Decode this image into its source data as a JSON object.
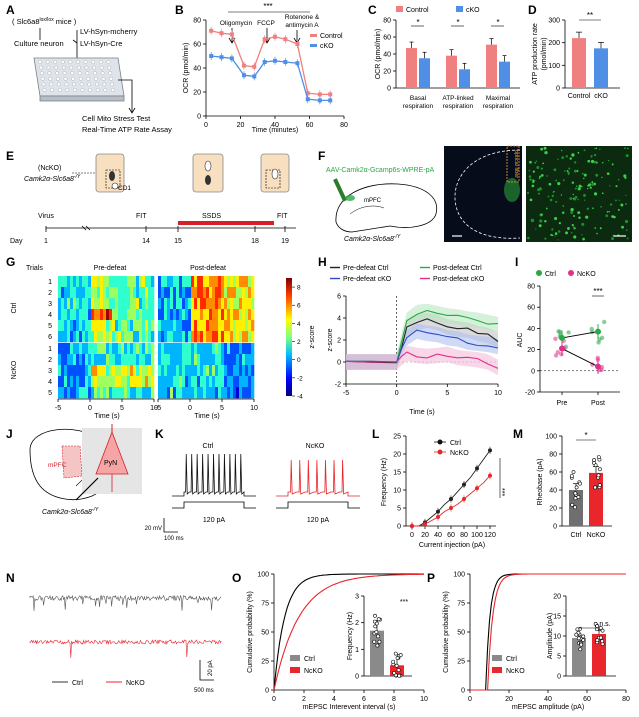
{
  "labels": [
    "A",
    "B",
    "C",
    "D",
    "E",
    "F",
    "G",
    "H",
    "I",
    "J",
    "K",
    "L",
    "M",
    "N",
    "O",
    "P"
  ],
  "colors": {
    "control": "#f08080",
    "ckO": "#4f8fe6",
    "ctrl": "#222222",
    "nckO": "#e8262b",
    "grey": "#8a8a8a",
    "green": "#29a845",
    "magenta": "#e0308a",
    "blue": "#2b4fc2"
  },
  "A": {
    "mouse": "( Slc6a8",
    "mouse_sup": "lox/lox",
    "mouse_end": " mice )",
    "culture": "Culture neuron",
    "virus1": "LV-hSyn-mcherry",
    "virus2": "LV-hSyn-Cre",
    "test1": "Cell Mito Stress Test",
    "test2": "Real-Time ATP Rate Assay"
  },
  "B": {
    "sig": "***",
    "anno": [
      "Oligomycin",
      "FCCP",
      "Rotenone &",
      "antimycin A"
    ],
    "legend": [
      "Control",
      "cKO"
    ],
    "ylabel": "OCR (pmol/min)",
    "xlabel": "Time (minutes)",
    "yticks": [
      "0",
      "20",
      "40",
      "60",
      "80"
    ],
    "xticks": [
      "0",
      "20",
      "40",
      "60",
      "80"
    ]
  },
  "C": {
    "legend": [
      "Control",
      "cKO"
    ],
    "ylabel": "OCR (pmol/min)",
    "yticks": [
      "0",
      "20",
      "40",
      "60",
      "80"
    ],
    "sig": [
      "*",
      "*",
      "*"
    ],
    "cats": [
      [
        "Basal",
        "respiration"
      ],
      [
        "ATP-linked",
        "respiration"
      ],
      [
        "Maximal",
        "respiration"
      ]
    ]
  },
  "D": {
    "ylabel1": "ATP production rate",
    "ylabel2": "(pmol/min)",
    "yticks": [
      "0",
      "100",
      "200",
      "300"
    ],
    "sig": "**",
    "cats": [
      "Control",
      "cKO"
    ]
  },
  "E": {
    "mouse_a": "(NcKO)",
    "mouse_b": "Camk2α-Slc6a8",
    "mouse_sup": "-/Y",
    "cd1": "CD1",
    "virus": "Virus",
    "fit1": "FIT",
    "ssds": "SSDS",
    "fit2": "FIT",
    "day": "Day",
    "days": [
      "1",
      "14",
      "15",
      "18",
      "19"
    ]
  },
  "F": {
    "virus": "AAV-Camk2α-Gcamp6s-WPRE-pA",
    "region": "mPFC",
    "mouse": "Camk2α-Slc6a8",
    "mouse_sup": "-/Y",
    "fiber": "optical fiber"
  },
  "G": {
    "trials": "Trials",
    "pre": "Pre-defeat",
    "post": "Post-defeat",
    "ctrl": "Ctrl",
    "ncko": "NcKO",
    "rows_ctrl": [
      "1",
      "2",
      "3",
      "4",
      "5",
      "6"
    ],
    "rows_ncko": [
      "1",
      "2",
      "3",
      "4",
      "5"
    ],
    "xticks": [
      "-5",
      "0",
      "5",
      "10"
    ],
    "xlabel": "Time (s)",
    "cbar_ticks": [
      "8",
      "6",
      "4",
      "2",
      "0",
      "-2",
      "-4"
    ],
    "cbar_label": "z-score"
  },
  "H": {
    "legend": [
      "Pre-defeat Ctrl",
      "Post-defeat Ctrl",
      "Pre-defeat cKO",
      "Post-defeat cKO"
    ],
    "ylabel": "z-score",
    "xlabel": "Time (s)",
    "yticks": [
      "-2",
      "0",
      "2",
      "4",
      "6"
    ],
    "xticks": [
      "-5",
      "0",
      "5",
      "10"
    ]
  },
  "I": {
    "legend": [
      "Ctrl",
      "NcKO"
    ],
    "ylabel": "AUC",
    "yticks": [
      "-20",
      "0",
      "20",
      "40",
      "60",
      "80"
    ],
    "sig": "***",
    "cats": [
      "Pre",
      "Post"
    ]
  },
  "J": {
    "region": "mPFC",
    "cell": "PyN",
    "mouse": "Camk2α-Slc6a8",
    "mouse_sup": "-/Y"
  },
  "K": {
    "ctrl": "Ctrl",
    "ncko": "NcKO",
    "step1": "120 pA",
    "step2": "120 pA",
    "scale_v": "20 mV",
    "scale_t": "100 ms"
  },
  "L": {
    "legend": [
      "Ctrl",
      "NcKO"
    ],
    "ylabel": "Frequency (Hz)",
    "xlabel": "Current injection (pA)",
    "sig": "***",
    "yticks": [
      "0",
      "5",
      "10",
      "15",
      "20",
      "25"
    ],
    "xticks": [
      "0",
      "20",
      "40",
      "60",
      "80",
      "100",
      "120"
    ]
  },
  "M": {
    "ylabel": "Rheobase (pA)",
    "yticks": [
      "0",
      "20",
      "40",
      "60",
      "80",
      "100"
    ],
    "sig": "*",
    "cats": [
      "Ctrl",
      "NcKO"
    ]
  },
  "N": {
    "ctrl": "Ctrl",
    "ncko": "NcKO",
    "scale_v": "20 pA",
    "scale_t": "500 ms"
  },
  "O": {
    "ylabel": "Cumulative probability (%)",
    "xlabel": "mEPSC Interevent interval (s)",
    "yticks": [
      "0",
      "25",
      "50",
      "75",
      "100"
    ],
    "xticks": [
      "0",
      "2",
      "4",
      "6",
      "8",
      "10"
    ],
    "legend": [
      "Ctrl",
      "NcKO"
    ],
    "inset_ylabel": "Frequency (Hz)",
    "inset_yticks": [
      "0",
      "1",
      "2",
      "3"
    ],
    "sig": "***"
  },
  "P": {
    "ylabel": "Cumulative probability (%)",
    "xlabel": "mEPSC amplitude (pA)",
    "yticks": [
      "0",
      "25",
      "50",
      "75",
      "100"
    ],
    "xticks": [
      "0",
      "20",
      "40",
      "60",
      "80"
    ],
    "legend": [
      "Ctrl",
      "NcKO"
    ],
    "inset_ylabel": "Amplitude (pA)",
    "inset_yticks": [
      "0",
      "5",
      "10",
      "15",
      "20"
    ],
    "sig": "n.s."
  },
  "chart_data": [
    {
      "panel": "B",
      "type": "line",
      "title": "",
      "xlabel": "Time (minutes)",
      "ylabel": "OCR (pmol/min)",
      "xlim": [
        0,
        80
      ],
      "ylim": [
        0,
        80
      ],
      "x": [
        3,
        9,
        15,
        22,
        28,
        34,
        40,
        46,
        53,
        59,
        66,
        72
      ],
      "series": [
        {
          "name": "Control",
          "values": [
            71,
            69,
            68,
            42,
            41,
            64,
            66,
            64,
            60,
            19,
            18,
            18
          ]
        },
        {
          "name": "cKO",
          "values": [
            50,
            49,
            48,
            34,
            33,
            45,
            46,
            45,
            44,
            14,
            13,
            13
          ]
        }
      ]
    },
    {
      "panel": "C",
      "type": "bar",
      "ylabel": "OCR (pmol/min)",
      "ylim": [
        0,
        80
      ],
      "categories": [
        "Basal respiration",
        "ATP-linked respiration",
        "Maximal respiration"
      ],
      "series": [
        {
          "name": "Control",
          "values": [
            47,
            38,
            51
          ]
        },
        {
          "name": "cKO",
          "values": [
            35,
            22,
            31
          ]
        }
      ]
    },
    {
      "panel": "D",
      "type": "bar",
      "ylabel": "ATP production rate (pmol/min)",
      "ylim": [
        0,
        300
      ],
      "categories": [
        "Control",
        "cKO"
      ],
      "values": [
        220,
        175
      ]
    },
    {
      "panel": "H",
      "type": "line",
      "xlabel": "Time (s)",
      "ylabel": "z-score",
      "xlim": [
        -5,
        10
      ],
      "ylim": [
        -2,
        6
      ],
      "x": [
        -5,
        -2.5,
        0,
        0.5,
        1,
        2,
        3,
        4,
        5,
        6,
        7,
        8,
        9,
        10
      ],
      "series": [
        {
          "name": "Pre-defeat Ctrl",
          "values": [
            0,
            0,
            0,
            1.5,
            3,
            3.6,
            3.8,
            3.6,
            3.2,
            3,
            2.9,
            2.6,
            2.4,
            2
          ]
        },
        {
          "name": "Post-defeat Ctrl",
          "values": [
            0,
            0,
            0,
            2,
            3.8,
            4.5,
            4.6,
            4.4,
            4.2,
            4.1,
            3.9,
            3.8,
            3.6,
            3.4
          ]
        },
        {
          "name": "Pre-defeat cKO",
          "values": [
            0,
            0,
            0,
            1.2,
            2.2,
            2.8,
            2.6,
            2.5,
            2.2,
            2.1,
            1.8,
            1.7,
            1.6,
            1.4
          ]
        },
        {
          "name": "Post-defeat cKO",
          "values": [
            0,
            0,
            0,
            0.4,
            0.8,
            0.6,
            0.5,
            0.6,
            0.7,
            0.4,
            0.3,
            0.2,
            0,
            -0.5
          ]
        }
      ]
    },
    {
      "panel": "I",
      "type": "scatter",
      "ylabel": "AUC",
      "ylim": [
        -20,
        80
      ],
      "categories": [
        "Pre",
        "Post"
      ],
      "series": [
        {
          "name": "Ctrl",
          "values": [
            31,
            37
          ]
        },
        {
          "name": "NcKO",
          "values": [
            21,
            4
          ]
        }
      ]
    },
    {
      "panel": "L",
      "type": "line",
      "xlabel": "Current injection (pA)",
      "ylabel": "Frequency (Hz)",
      "xlim": [
        0,
        120
      ],
      "ylim": [
        0,
        25
      ],
      "x": [
        0,
        10,
        20,
        30,
        40,
        50,
        60,
        70,
        80,
        90,
        100,
        110,
        120
      ],
      "series": [
        {
          "name": "Ctrl",
          "values": [
            0,
            0,
            1,
            2.5,
            4,
            6,
            7.5,
            9.5,
            11.5,
            13.5,
            16,
            18.5,
            21
          ]
        },
        {
          "name": "NcKO",
          "values": [
            0,
            0,
            0.5,
            1.5,
            2.5,
            4,
            5,
            6,
            7.5,
            9,
            10.5,
            12,
            14
          ]
        }
      ]
    },
    {
      "panel": "M",
      "type": "bar",
      "ylabel": "Rheobase (pA)",
      "ylim": [
        0,
        100
      ],
      "categories": [
        "Ctrl",
        "NcKO"
      ],
      "values": [
        40,
        59
      ]
    },
    {
      "panel": "O-inset",
      "type": "bar",
      "ylabel": "Frequency (Hz)",
      "ylim": [
        0,
        3
      ],
      "categories": [
        "Ctrl",
        "NcKO"
      ],
      "values": [
        1.7,
        0.4
      ]
    },
    {
      "panel": "P-inset",
      "type": "bar",
      "ylabel": "Amplitude (pA)",
      "ylim": [
        0,
        20
      ],
      "categories": [
        "Ctrl",
        "NcKO"
      ],
      "values": [
        9.5,
        10.5
      ]
    }
  ]
}
